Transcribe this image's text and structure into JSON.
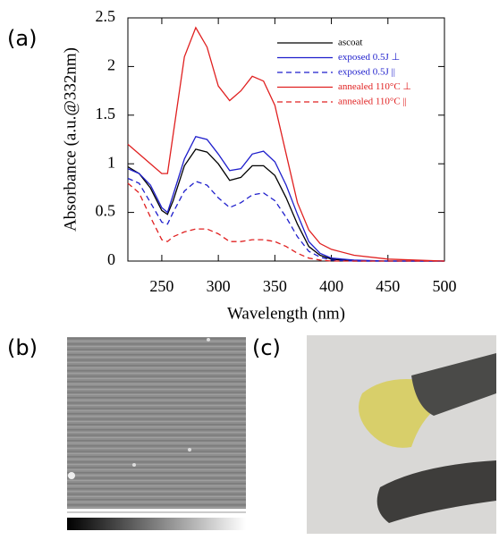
{
  "panel_labels": [
    "(a)",
    "(b)",
    "(c)"
  ],
  "chart_data": {
    "type": "line",
    "x_label": "Wavelength (nm)",
    "y_label": "Absorbance (a.u.@332nm)",
    "x": [
      220,
      230,
      240,
      250,
      255,
      260,
      270,
      280,
      290,
      300,
      310,
      320,
      330,
      340,
      350,
      360,
      370,
      380,
      390,
      400,
      420,
      450,
      500
    ],
    "series": [
      {
        "name": "ascoat",
        "color": "#000000",
        "dash": false,
        "values": [
          0.97,
          0.9,
          0.75,
          0.52,
          0.48,
          0.62,
          0.98,
          1.15,
          1.12,
          1.0,
          0.83,
          0.86,
          0.98,
          0.98,
          0.88,
          0.65,
          0.38,
          0.15,
          0.06,
          0.02,
          0,
          0,
          0
        ]
      },
      {
        "name": "exposed 0.5J ⊥",
        "color": "#1f1fcc",
        "dash": false,
        "values": [
          0.95,
          0.9,
          0.78,
          0.55,
          0.5,
          0.68,
          1.05,
          1.28,
          1.25,
          1.1,
          0.93,
          0.95,
          1.1,
          1.13,
          1.02,
          0.78,
          0.48,
          0.2,
          0.08,
          0.03,
          0.01,
          0,
          0
        ]
      },
      {
        "name": "exposed 0.5J ||",
        "color": "#1f1fcc",
        "dash": true,
        "values": [
          0.85,
          0.8,
          0.6,
          0.4,
          0.38,
          0.5,
          0.72,
          0.82,
          0.78,
          0.65,
          0.55,
          0.6,
          0.68,
          0.7,
          0.62,
          0.45,
          0.25,
          0.1,
          0.04,
          0.01,
          0,
          0,
          0
        ]
      },
      {
        "name": "annealed 110°C ⊥",
        "color": "#e02020",
        "dash": false,
        "values": [
          1.2,
          1.1,
          1.0,
          0.9,
          0.9,
          1.3,
          2.1,
          2.4,
          2.2,
          1.8,
          1.65,
          1.75,
          1.9,
          1.85,
          1.6,
          1.1,
          0.6,
          0.32,
          0.18,
          0.12,
          0.06,
          0.02,
          0
        ]
      },
      {
        "name": "annealed 110°C  ||",
        "color": "#e02020",
        "dash": true,
        "values": [
          0.8,
          0.7,
          0.45,
          0.22,
          0.2,
          0.25,
          0.3,
          0.33,
          0.33,
          0.28,
          0.2,
          0.2,
          0.22,
          0.22,
          0.2,
          0.15,
          0.08,
          0.03,
          0.01,
          0,
          0,
          0,
          0
        ]
      }
    ],
    "xlim": [
      220,
      500
    ],
    "xticks": [
      250,
      300,
      350,
      400,
      450,
      500
    ],
    "ylim": [
      0,
      2.5
    ],
    "yticks": [
      0,
      0.5,
      1,
      1.5,
      2,
      2.5
    ],
    "legend": "upper right",
    "grid": false
  }
}
